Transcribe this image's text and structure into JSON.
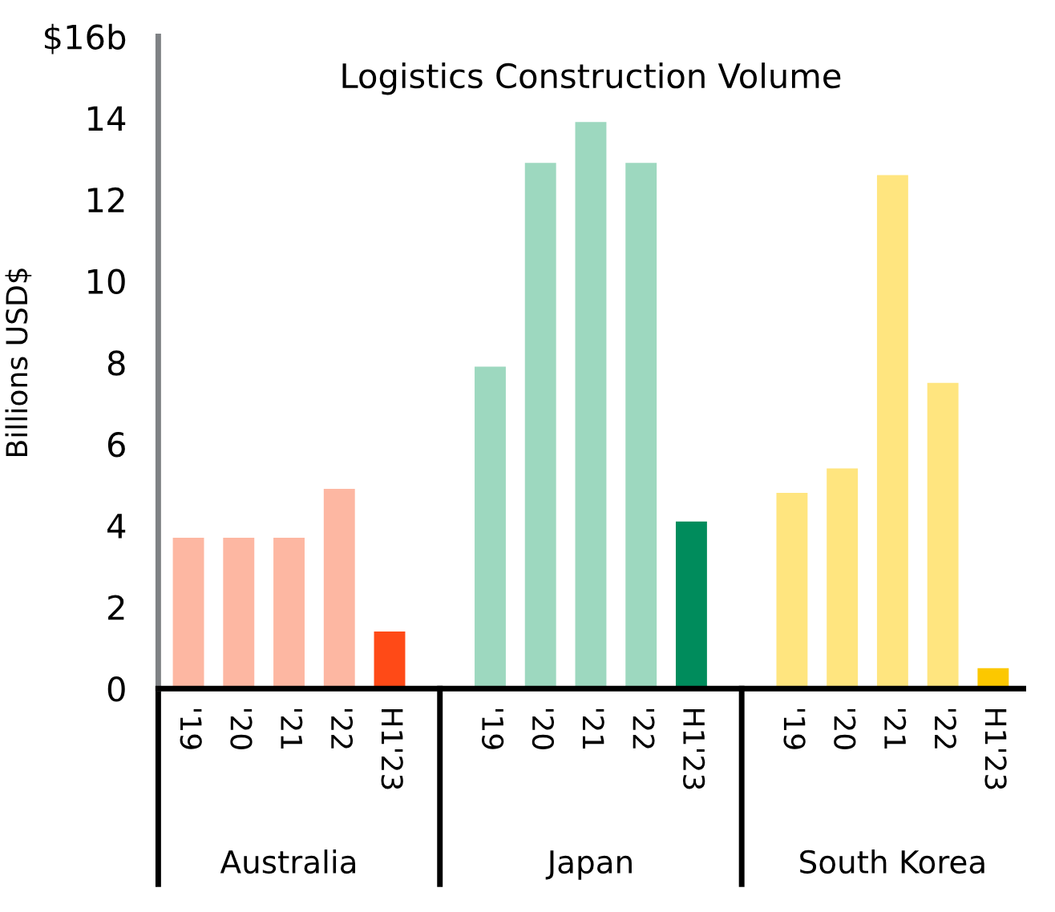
{
  "chart_data": {
    "type": "bar",
    "title": "Logistics Construction Volume",
    "ylabel": "Billions USD$",
    "categories": [
      "'19",
      "'20",
      "'21",
      "'22",
      "H1'23",
      null,
      "'19",
      "'20",
      "'21",
      "'22",
      "H1'23",
      null,
      "'19",
      "'20",
      "'21",
      "'22",
      "H1'23"
    ],
    "values": [
      3.7,
      3.7,
      3.7,
      4.9,
      1.4,
      null,
      7.9,
      12.9,
      13.9,
      12.9,
      4.1,
      null,
      4.8,
      5.4,
      12.6,
      7.5,
      0.5
    ],
    "colors": [
      "#fdb7a2",
      "#fdb7a2",
      "#fdb7a2",
      "#fdb7a2",
      "#ff4a17",
      null,
      "#9dd8bf",
      "#9dd8bf",
      "#9dd8bf",
      "#9dd8bf",
      "#008c5c",
      null,
      "#ffe57f",
      "#ffe57f",
      "#ffe57f",
      "#ffe57f",
      "#fcc800"
    ],
    "annotations": [
      "Australia",
      "Japan",
      "South Korea"
    ],
    "ylim": [
      0,
      16
    ],
    "yticks": [
      0,
      2,
      4,
      6,
      8,
      10,
      12,
      14,
      {
        "value": 16,
        "label": "$16b"
      }
    ],
    "grid": false
  }
}
